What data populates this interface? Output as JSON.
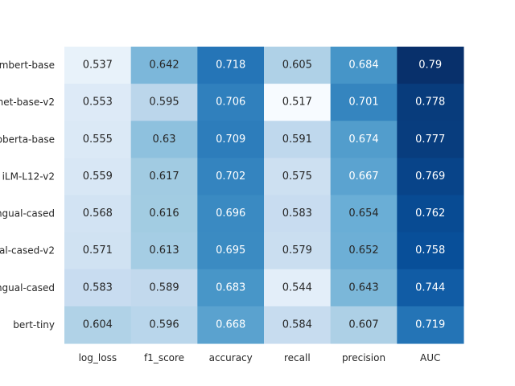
{
  "chart_data": {
    "type": "heatmap",
    "title": "",
    "xlabel": "",
    "ylabel": "",
    "columns": [
      "log_loss",
      "f1_score",
      "accuracy",
      "recall",
      "precision",
      "AUC"
    ],
    "rows": [
      "mbert-base",
      "net-base-v2",
      "oberta-base",
      "iLM-L12-v2",
      "ngual-cased",
      "al-cased-v2",
      "ngual-cased",
      "bert-tiny"
    ],
    "values": [
      [
        0.537,
        0.642,
        0.718,
        0.605,
        0.684,
        0.79
      ],
      [
        0.553,
        0.595,
        0.706,
        0.517,
        0.701,
        0.778
      ],
      [
        0.555,
        0.63,
        0.709,
        0.591,
        0.674,
        0.777
      ],
      [
        0.559,
        0.617,
        0.702,
        0.575,
        0.667,
        0.769
      ],
      [
        0.568,
        0.616,
        0.696,
        0.583,
        0.654,
        0.762
      ],
      [
        0.571,
        0.613,
        0.695,
        0.579,
        0.652,
        0.758
      ],
      [
        0.583,
        0.589,
        0.683,
        0.544,
        0.643,
        0.744
      ],
      [
        0.604,
        0.596,
        0.668,
        0.584,
        0.607,
        0.719
      ]
    ],
    "cell_labels": [
      [
        "0.537",
        "0.642",
        "0.718",
        "0.605",
        "0.684",
        "0.79"
      ],
      [
        "0.553",
        "0.595",
        "0.706",
        "0.517",
        "0.701",
        "0.778"
      ],
      [
        "0.555",
        "0.63",
        "0.709",
        "0.591",
        "0.674",
        "0.777"
      ],
      [
        "0.559",
        "0.617",
        "0.702",
        "0.575",
        "0.667",
        "0.769"
      ],
      [
        "0.568",
        "0.616",
        "0.696",
        "0.583",
        "0.654",
        "0.762"
      ],
      [
        "0.571",
        "0.613",
        "0.695",
        "0.579",
        "0.652",
        "0.758"
      ],
      [
        "0.583",
        "0.589",
        "0.683",
        "0.544",
        "0.643",
        "0.744"
      ],
      [
        "0.604",
        "0.596",
        "0.668",
        "0.584",
        "0.607",
        "0.719"
      ]
    ],
    "colormap": "Blues",
    "color_range": [
      0.517,
      0.79
    ],
    "grid": false,
    "legend": "none"
  }
}
